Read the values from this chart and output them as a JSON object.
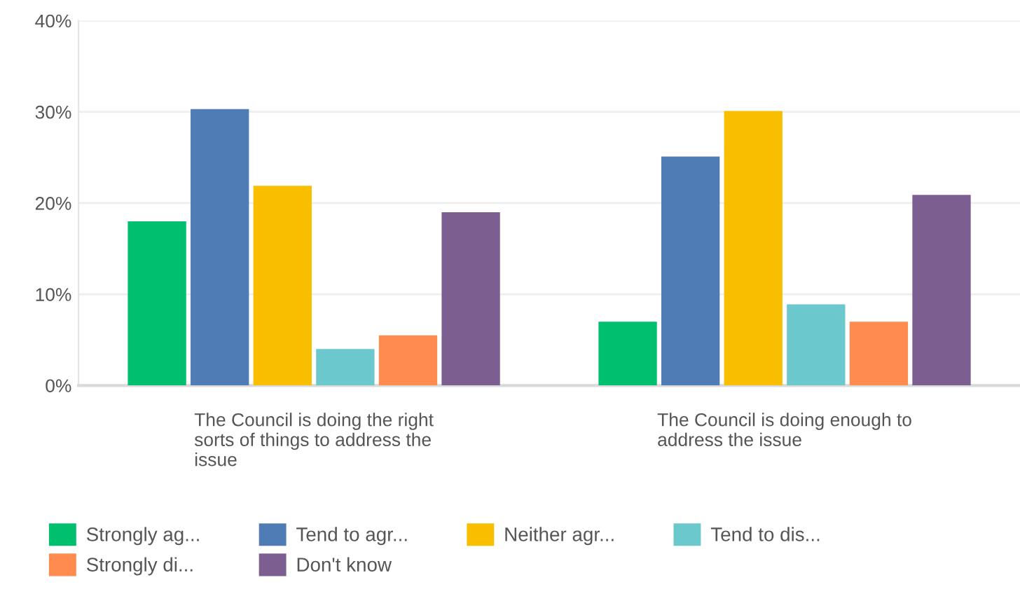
{
  "chart_data": {
    "type": "bar",
    "categories": [
      "The Council is doing the right\nsorts of things to address the\nissue",
      "The Council is doing enough to\naddress the issue"
    ],
    "series": [
      {
        "name": "Strongly ag...",
        "color": "#00bf6f",
        "values": [
          18.0,
          7.0
        ]
      },
      {
        "name": "Tend to agr...",
        "color": "#507cb6",
        "values": [
          30.3,
          25.1
        ]
      },
      {
        "name": "Neither agr...",
        "color": "#f9be00",
        "values": [
          21.9,
          30.1
        ]
      },
      {
        "name": "Tend to dis...",
        "color": "#6bc8cd",
        "values": [
          4.0,
          8.9
        ]
      },
      {
        "name": "Strongly di...",
        "color": "#ff8b4f",
        "values": [
          5.5,
          7.0
        ]
      },
      {
        "name": "Don't know",
        "color": "#7d5e90",
        "values": [
          19.0,
          20.9
        ]
      }
    ],
    "ylim": [
      0,
      40
    ],
    "yticks": [
      {
        "value": 0,
        "label": "0%"
      },
      {
        "value": 10,
        "label": "10%"
      },
      {
        "value": 20,
        "label": "20%"
      },
      {
        "value": 30,
        "label": "30%"
      },
      {
        "value": 40,
        "label": "40%"
      }
    ],
    "grid": "y",
    "legend": "bottom"
  }
}
